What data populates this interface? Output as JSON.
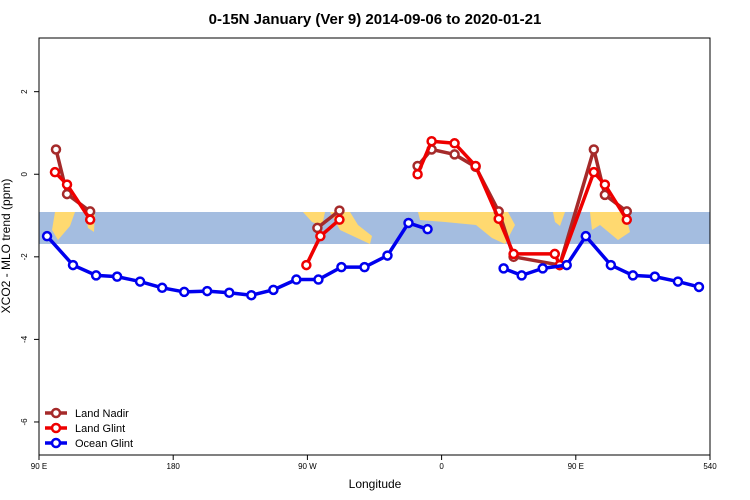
{
  "chart_data": {
    "type": "line",
    "title": "0-15N January (Ver 9)   2014-09-06 to 2020-01-21",
    "xlabel": "Longitude",
    "ylabel": "XCO2 - MLO trend (ppm)",
    "xlim": [
      90,
      540
    ],
    "ylim": [
      -6.8,
      3.3
    ],
    "xticks": [
      {
        "value": 90,
        "label": "90 E"
      },
      180,
      {
        "value": 270,
        "label": "90 W"
      },
      {
        "value": 360,
        "label": "0"
      },
      {
        "value": 450,
        "label": "90 E"
      },
      540
    ],
    "yticks": [
      2,
      0,
      -2,
      -4,
      -6
    ],
    "legend": "bottom-left",
    "series": [
      {
        "name": "Land Nadir",
        "color": "#a52a2a",
        "x": [
          101.4,
          108.8,
          124.3,
          null,
          276.7,
          291.5,
          null,
          343.9,
          353.3,
          368.7,
          382.8,
          398.3,
          408.3,
          439.2,
          462.1,
          469.5,
          484.2
        ],
        "values": [
          0.6,
          -0.48,
          -0.9,
          null,
          -1.3,
          -0.88,
          null,
          0.2,
          0.6,
          0.48,
          0.18,
          -0.9,
          -2.0,
          -2.2,
          0.6,
          -0.5,
          -0.9
        ]
      },
      {
        "name": "Land Glint",
        "color": "#ee0000",
        "x": [
          100.7,
          108.8,
          124.3,
          null,
          269.3,
          278.7,
          291.5,
          null,
          343.9,
          353.3,
          368.7,
          382.8,
          398.3,
          408.3,
          435.9,
          439.2,
          462.1,
          469.5,
          484.2
        ],
        "values": [
          0.05,
          -0.25,
          -1.1,
          null,
          -2.2,
          -1.5,
          -1.1,
          null,
          0.0,
          0.8,
          0.75,
          0.2,
          -1.08,
          -1.93,
          -1.93,
          -2.2,
          0.05,
          -0.25,
          -1.1
        ]
      },
      {
        "name": "Ocean Glint",
        "color": "#0000ee",
        "x": [
          95.4,
          112.8,
          128.3,
          142.4,
          157.8,
          172.6,
          187.4,
          202.8,
          217.6,
          232.4,
          247.2,
          262.6,
          277.4,
          292.8,
          308.3,
          323.7,
          337.8,
          350.6,
          null,
          401.6,
          413.7,
          427.8,
          443.9,
          456.7,
          473.5,
          488.3,
          503.0,
          518.5,
          532.6
        ],
        "values": [
          -1.5,
          -2.2,
          -2.45,
          -2.48,
          -2.6,
          -2.75,
          -2.85,
          -2.83,
          -2.87,
          -2.93,
          -2.8,
          -2.55,
          -2.55,
          -2.25,
          -2.25,
          -1.97,
          -1.18,
          -1.33,
          null,
          -2.28,
          -2.45,
          -2.28,
          -2.2,
          -1.5,
          -2.2,
          -2.45,
          -2.48,
          -2.6,
          -2.73
        ]
      }
    ]
  }
}
